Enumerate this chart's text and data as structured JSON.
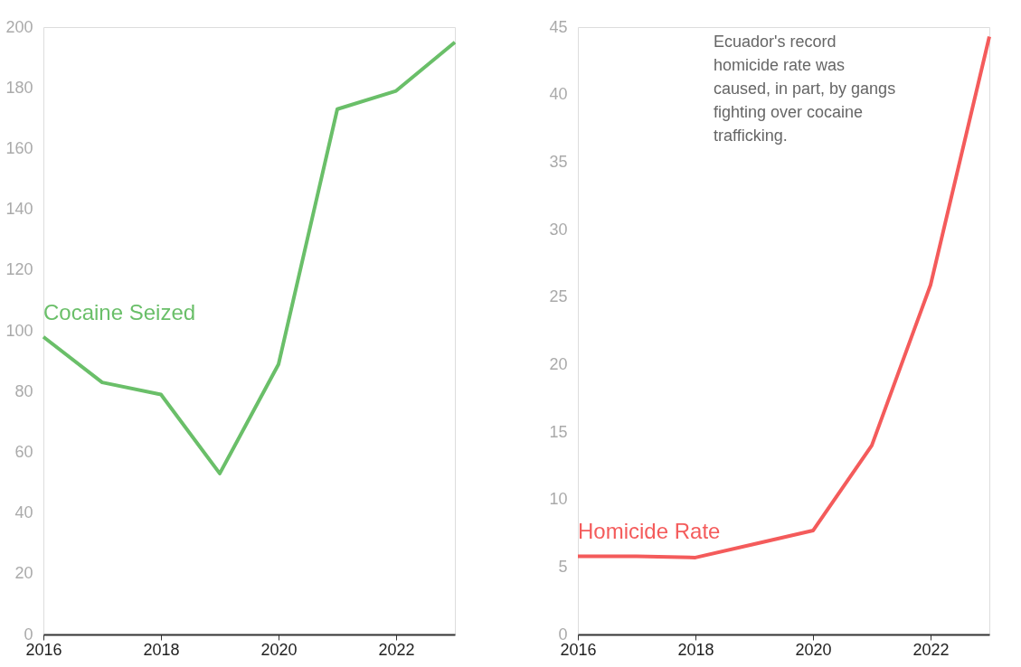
{
  "chart_data": [
    {
      "type": "line",
      "x": [
        2016,
        2017,
        2018,
        2019,
        2020,
        2021,
        2022,
        2023
      ],
      "xlim": [
        2016,
        2023
      ],
      "xticks": [
        2016,
        2018,
        2020,
        2022
      ],
      "ylim": [
        0,
        200
      ],
      "yticks": [
        0,
        20,
        40,
        60,
        80,
        100,
        120,
        140,
        160,
        180,
        200
      ],
      "series": [
        {
          "name": "Cocaine Seized",
          "color": "#6abf69",
          "values": [
            98,
            83,
            79,
            53,
            89,
            173,
            179,
            195
          ]
        }
      ]
    },
    {
      "type": "line",
      "x": [
        2016,
        2017,
        2018,
        2019,
        2020,
        2021,
        2022,
        2023
      ],
      "xlim": [
        2016,
        2023
      ],
      "xticks": [
        2016,
        2018,
        2020,
        2022
      ],
      "ylim": [
        0,
        45
      ],
      "yticks": [
        0,
        5,
        10,
        15,
        20,
        25,
        30,
        35,
        40,
        45
      ],
      "series": [
        {
          "name": "Homicide Rate",
          "color": "#f45b5b",
          "values": [
            5.8,
            5.8,
            5.7,
            6.7,
            7.7,
            14,
            25.9,
            44.3
          ]
        }
      ],
      "annotations": [
        "Ecuador's record\nhomicide rate was\ncaused, in part, by gangs\nfighting over cocaine\ntrafficking."
      ]
    }
  ]
}
